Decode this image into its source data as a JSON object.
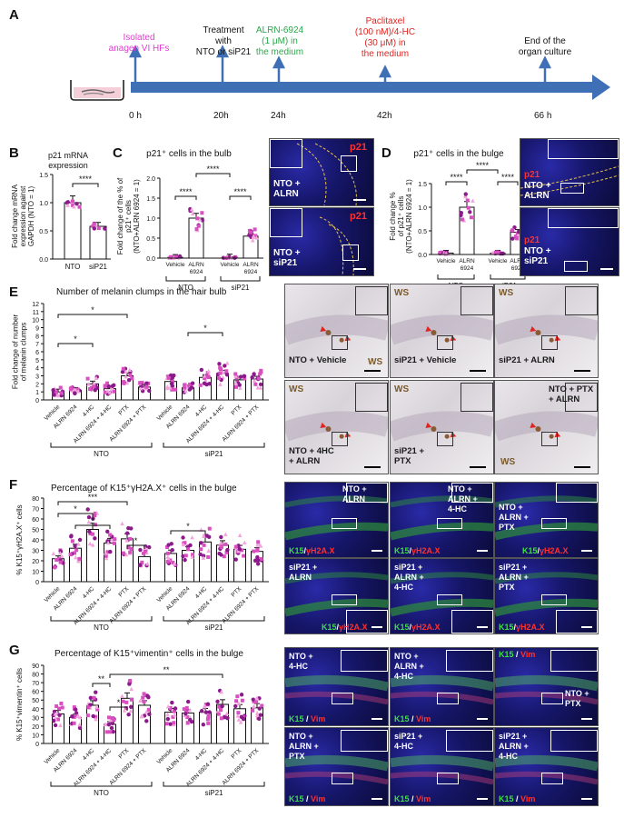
{
  "panel_labels": [
    "A",
    "B",
    "C",
    "D",
    "E",
    "F",
    "G"
  ],
  "timeline": {
    "events": [
      {
        "label": "Isolated\nanagen VI HFs",
        "color": "#e23bd1",
        "time": "0 h"
      },
      {
        "label": "Treatment\nwith\nNTO or siP21",
        "color": "#111111",
        "time": "20h"
      },
      {
        "label": "ALRN-6924\n(1 μM) in\nthe medium",
        "color": "#2aa84a",
        "time": "24h"
      },
      {
        "label": "Paclitaxel\n(100 nM)/4-HC\n(30 μM) in\nthe medium",
        "color": "#e0241f",
        "time": "42h"
      },
      {
        "label": "End of the\norgan culture",
        "color": "#111111",
        "time": "66 h"
      }
    ],
    "arrow_color": "#3f6fb5"
  },
  "panel_B": {
    "title": "p21 mRNA\nexpression",
    "ylabel": "Fold change mRNA\nexpression against\nGAPDH (NTO = 1)",
    "sig": "****",
    "yticks": [
      "0.0",
      "0.5",
      "1.0",
      "1.5"
    ]
  },
  "panel_C": {
    "title": "p21⁺ cells in the bulb",
    "ylabel": "Fold change of the % of\np21⁺ cells\n(NTO+ALRN 6924 = 1)",
    "sig": [
      "****",
      "****",
      "****"
    ],
    "yticks": [
      "0.0",
      "0.5",
      "1.0",
      "1.5",
      "2.0"
    ],
    "xlabels": [
      "Vehicle",
      "ALRN\n6924",
      "Vehicle",
      "ALRN\n6924"
    ],
    "groups": [
      "NTO",
      "siP21"
    ],
    "images": [
      {
        "tag": "p21",
        "caption": "NTO +\nALRN"
      },
      {
        "tag": "p21",
        "caption": "NTO +\nsiP21"
      }
    ]
  },
  "panel_D": {
    "title": "p21⁺ cells in the bulge",
    "ylabel": "Fold change %\nof p21⁺ cells\n(NTO+ALRN 6924 = 1)",
    "sig": [
      "****",
      "****",
      "****"
    ],
    "yticks": [
      "0.0",
      "0.5",
      "1.0",
      "1.5"
    ],
    "xlabels": [
      "Vehicle",
      "ALRN\n6924",
      "Vehicle",
      "ALRN\n6924"
    ],
    "groups": [
      "NTO",
      "siP21"
    ],
    "images": [
      {
        "tag": "p21",
        "caption": "NTO +\nALRN"
      },
      {
        "tag": "p21",
        "caption": "NTO +\nsiP21"
      }
    ]
  },
  "panel_E": {
    "title": "Number of melanin clumps in the hair bulb",
    "ylabel": "Fold change of number\nof melanin clumps",
    "yticks": [
      "0",
      "1",
      "2",
      "3",
      "4",
      "5",
      "6",
      "7",
      "8",
      "9",
      "10",
      "11",
      "12"
    ],
    "xlabels": [
      "Vehicle",
      "ALRN 6924",
      "4-HC",
      "ALRN 6924 + 4-HC",
      "PTX",
      "ALRN 6924 + PTX"
    ],
    "groups": [
      "NTO",
      "siP21"
    ],
    "sig": [
      "*",
      "*",
      "*"
    ],
    "images": [
      {
        "caption": "NTO + Vehicle",
        "ws": "WS"
      },
      {
        "caption": "siP21 + Vehicle",
        "ws": "WS"
      },
      {
        "caption": "siP21 + ALRN",
        "ws": "WS"
      },
      {
        "caption": "NTO + 4HC\n+ ALRN",
        "ws": "WS"
      },
      {
        "caption": "siP21 +\nPTX",
        "ws": "WS"
      },
      {
        "caption": "NTO + PTX\n+ ALRN",
        "ws": "WS"
      }
    ]
  },
  "panel_F": {
    "title": "Percentage of K15⁺γH2A.X⁺ cells in the bulge",
    "ylabel": "% K15⁺γH2A.X⁺ cells",
    "yticks": [
      "0",
      "10",
      "20",
      "30",
      "40",
      "50",
      "60",
      "70",
      "80"
    ],
    "xlabels": [
      "Vehicle",
      "ALRN 6924",
      "4-HC",
      "ALRN 6924 + 4-HC",
      "PTX",
      "ALRN 6924 + PTX"
    ],
    "groups": [
      "NTO",
      "siP21"
    ],
    "sig": [
      "***",
      "*",
      "*",
      "*",
      "*"
    ],
    "stain_a": "K15",
    "stain_b": "γH2A.X",
    "images": [
      {
        "caption": "NTO +\nALRN"
      },
      {
        "caption": "NTO +\nALRN +\n4-HC"
      },
      {
        "caption": "NTO +\nALRN +\nPTX"
      },
      {
        "caption": "siP21 +\nALRN"
      },
      {
        "caption": "siP21 +\nALRN +\n4-HC"
      },
      {
        "caption": "siP21 +\nALRN +\nPTX"
      }
    ]
  },
  "panel_G": {
    "title": "Percentage of K15⁺vimentin⁺ cells in the bulge",
    "ylabel": "% K15⁺vimentin⁺ cells",
    "yticks": [
      "0",
      "10",
      "20",
      "30",
      "40",
      "50",
      "60",
      "70",
      "80",
      "90"
    ],
    "xlabels": [
      "Vehicle",
      "ALRN 6924",
      "4-HC",
      "ALRN 6924 + 4-HC",
      "PTX",
      "ALRN 6924 + PTX"
    ],
    "groups": [
      "NTO",
      "siP21"
    ],
    "sig": [
      "**",
      "*",
      "**"
    ],
    "stain_a": "K15",
    "stain_b": "Vim",
    "images": [
      {
        "caption": "NTO +\n4-HC"
      },
      {
        "caption": "NTO +\nALRN +\n4-HC"
      },
      {
        "caption": "NTO +\nPTX"
      },
      {
        "caption": "NTO +\nALRN +\nPTX"
      },
      {
        "caption": "siP21 +\n4-HC"
      },
      {
        "caption": "siP21 +\nALRN +\n4-HC"
      }
    ]
  },
  "chart_data": [
    {
      "type": "bar",
      "panel": "B",
      "categories": [
        "NTO",
        "siP21"
      ],
      "values": [
        1.0,
        0.58
      ],
      "ylim": [
        0,
        1.5
      ]
    },
    {
      "type": "bar",
      "panel": "C",
      "categories": [
        "NTO Vehicle",
        "NTO ALRN 6924",
        "siP21 Vehicle",
        "siP21 ALRN 6924"
      ],
      "values": [
        0.02,
        1.0,
        0.03,
        0.55
      ],
      "ylim": [
        0,
        2.0
      ]
    },
    {
      "type": "bar",
      "panel": "D",
      "categories": [
        "NTO Vehicle",
        "NTO ALRN 6924",
        "siP21 Vehicle",
        "siP21 ALRN 6924"
      ],
      "values": [
        0.03,
        1.0,
        0.03,
        0.47
      ],
      "ylim": [
        0,
        1.5
      ]
    },
    {
      "type": "bar",
      "panel": "E",
      "categories": [
        "Vehicle",
        "ALRN 6924",
        "4-HC",
        "ALRN 6924 + 4-HC",
        "PTX",
        "ALRN 6924 + PTX"
      ],
      "series": [
        {
          "name": "NTO",
          "values": [
            1.0,
            1.2,
            2.0,
            1.4,
            3.0,
            1.6
          ]
        },
        {
          "name": "siP21",
          "values": [
            2.3,
            1.5,
            2.8,
            3.3,
            2.5,
            2.6
          ]
        }
      ],
      "ylim": [
        0,
        12
      ]
    },
    {
      "type": "bar",
      "panel": "F",
      "categories": [
        "Vehicle",
        "ALRN 6924",
        "4-HC",
        "ALRN 6924 + 4-HC",
        "PTX",
        "ALRN 6924 + PTX"
      ],
      "series": [
        {
          "name": "NTO",
          "values": [
            22,
            32,
            50,
            37,
            41,
            24
          ]
        },
        {
          "name": "siP21",
          "values": [
            27,
            30,
            38,
            35,
            31,
            29
          ]
        }
      ],
      "ylim": [
        0,
        80
      ]
    },
    {
      "type": "bar",
      "panel": "G",
      "categories": [
        "Vehicle",
        "ALRN 6924",
        "4-HC",
        "ALRN 6924 + 4-HC",
        "PTX",
        "ALRN 6924 + PTX"
      ],
      "series": [
        {
          "name": "NTO",
          "values": [
            34,
            30,
            44,
            22,
            52,
            44
          ]
        },
        {
          "name": "siP21",
          "values": [
            36,
            35,
            36,
            45,
            40,
            41
          ]
        }
      ],
      "ylim": [
        0,
        90
      ]
    }
  ]
}
